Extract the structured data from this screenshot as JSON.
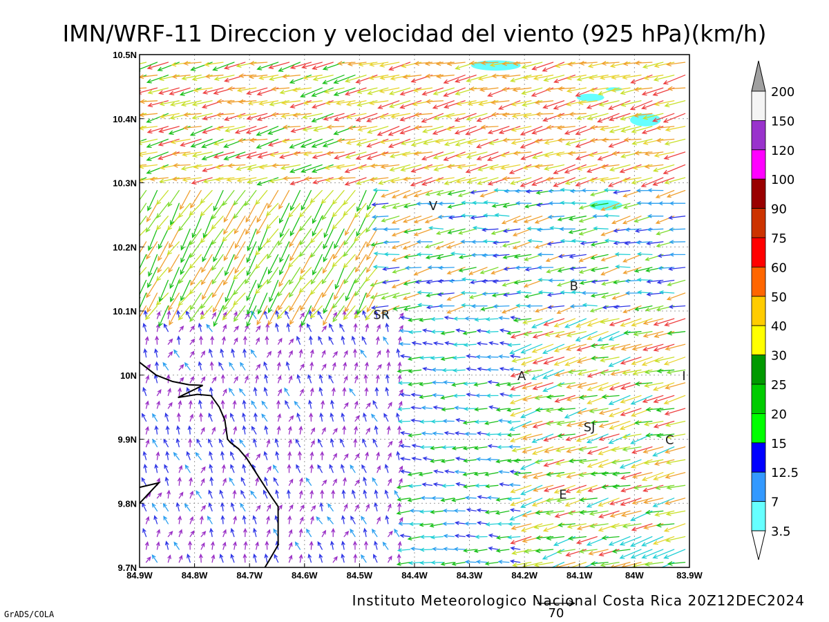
{
  "title": "IMN/WRF-11 Direccion y velocidad del viento (925 hPa)(km/h)",
  "credit": "Instituto Meteorologico Nacional Costa Rica  20Z12DEC2024",
  "software": "GrADS/COLA",
  "reference_vector": {
    "label": "70",
    "value": 70
  },
  "axes": {
    "lon_min": -84.9,
    "lon_max": -83.9,
    "lat_min": 9.7,
    "lat_max": 10.5,
    "x_ticks": [
      {
        "value": -84.9,
        "label": "84.9W"
      },
      {
        "value": -84.8,
        "label": "84.8W"
      },
      {
        "value": -84.7,
        "label": "84.7W"
      },
      {
        "value": -84.6,
        "label": "84.6W"
      },
      {
        "value": -84.5,
        "label": "84.5W"
      },
      {
        "value": -84.4,
        "label": "84.4W"
      },
      {
        "value": -84.3,
        "label": "84.3W"
      },
      {
        "value": -84.2,
        "label": "84.2W"
      },
      {
        "value": -84.1,
        "label": "84.1W"
      },
      {
        "value": -84.0,
        "label": "84W"
      },
      {
        "value": -83.9,
        "label": "83.9W"
      }
    ],
    "y_ticks": [
      {
        "value": 9.7,
        "label": "9.7N"
      },
      {
        "value": 9.8,
        "label": "9.8N"
      },
      {
        "value": 9.9,
        "label": "9.9N"
      },
      {
        "value": 10.0,
        "label": "10N"
      },
      {
        "value": 10.1,
        "label": "10.1N"
      },
      {
        "value": 10.2,
        "label": "10.2N"
      },
      {
        "value": 10.3,
        "label": "10.3N"
      },
      {
        "value": 10.4,
        "label": "10.4N"
      },
      {
        "value": 10.5,
        "label": "10.5N"
      }
    ],
    "grid": true
  },
  "places": [
    {
      "label": "V",
      "lon": -84.366,
      "lat": 10.265
    },
    {
      "label": "SR",
      "lon": -84.46,
      "lat": 10.095
    },
    {
      "label": "B",
      "lon": -84.11,
      "lat": 10.14
    },
    {
      "label": "A",
      "lon": -84.205,
      "lat": 10.0
    },
    {
      "label": "I",
      "lon": -83.91,
      "lat": 10.0
    },
    {
      "label": "SJ",
      "lon": -84.082,
      "lat": 9.92
    },
    {
      "label": "C",
      "lon": -83.936,
      "lat": 9.9
    },
    {
      "label": "E",
      "lon": -84.13,
      "lat": 9.815
    }
  ],
  "legend": {
    "entries": [
      {
        "label": "200",
        "color": "#a0a0a0"
      },
      {
        "label": "150",
        "color": "#f4f4f4"
      },
      {
        "label": "120",
        "color": "#9933cc"
      },
      {
        "label": "100",
        "color": "#ff00ff"
      },
      {
        "label": "90",
        "color": "#990000"
      },
      {
        "label": "75",
        "color": "#cc3300"
      },
      {
        "label": "60",
        "color": "#ff0000"
      },
      {
        "label": "50",
        "color": "#ff6600"
      },
      {
        "label": "40",
        "color": "#ffcc00"
      },
      {
        "label": "30",
        "color": "#ffff00"
      },
      {
        "label": "25",
        "color": "#009900"
      },
      {
        "label": "20",
        "color": "#00cc00"
      },
      {
        "label": "15",
        "color": "#00ff00"
      },
      {
        "label": "12.5",
        "color": "#0000ff"
      },
      {
        "label": "7",
        "color": "#3399ff"
      },
      {
        "label": "3.5",
        "color": "#66ffff"
      }
    ],
    "bottom_color": "#ffffff"
  },
  "colors": {
    "purple": "#9a2fc6",
    "blue": "#2e35e6",
    "lightblue": "#2a9ff0",
    "cyan": "#22cfd6",
    "green": "#19c019",
    "lightgreen": "#7edc30",
    "yellowgreen": "#c8e02a",
    "yellow": "#e8d430",
    "orange": "#f0a030",
    "red": "#ee4040",
    "coast": "#000000",
    "shade": "#66ffff"
  },
  "coastline": [
    [
      [
        -84.9,
        10.02
      ],
      [
        -84.87,
        10.0
      ],
      [
        -84.84,
        9.99
      ],
      [
        -84.81,
        9.985
      ],
      [
        -84.785,
        9.984
      ],
      [
        -84.83,
        9.965
      ],
      [
        -84.795,
        9.97
      ],
      [
        -84.77,
        9.968
      ],
      [
        -84.755,
        9.95
      ],
      [
        -84.745,
        9.93
      ],
      [
        -84.74,
        9.9
      ],
      [
        -84.735,
        9.895
      ],
      [
        -84.72,
        9.885
      ],
      [
        -84.705,
        9.87
      ],
      [
        -84.69,
        9.85
      ],
      [
        -84.675,
        9.83
      ],
      [
        -84.66,
        9.81
      ],
      [
        -84.648,
        9.795
      ],
      [
        -84.648,
        9.77
      ],
      [
        -84.648,
        9.735
      ],
      [
        -84.665,
        9.71
      ],
      [
        -84.672,
        9.7
      ]
    ],
    [
      [
        -84.9,
        9.825
      ],
      [
        -84.865,
        9.832
      ],
      [
        -84.9,
        9.8
      ]
    ]
  ],
  "shaded_regions": [
    {
      "lon": -84.252,
      "lat": 10.483,
      "rlon": 0.045,
      "rlat": 0.008
    },
    {
      "lon": -84.08,
      "lat": 10.433,
      "rlon": 0.025,
      "rlat": 0.006
    },
    {
      "lon": -84.037,
      "lat": 10.446,
      "rlon": 0.015,
      "rlat": 0.003
    },
    {
      "lon": -83.98,
      "lat": 10.398,
      "rlon": 0.028,
      "rlat": 0.01
    },
    {
      "lon": -84.052,
      "lat": 10.265,
      "rlon": 0.03,
      "rlat": 0.008
    }
  ],
  "chart_data": {
    "type": "vector_field",
    "variable": "Direccion y velocidad del viento (925 hPa)",
    "units": "km/h",
    "zones": [
      {
        "region": "north (10.3N-10.5N)",
        "direction": "from east-northeast",
        "speed_kmh": [
          30,
          65
        ]
      },
      {
        "region": "southwest coastal (south of 10.1N, west of 84.4W)",
        "direction": "variable, weak",
        "speed_kmh": [
          0,
          12
        ]
      },
      {
        "region": "central-east (9.9N-10.1N, 84.4W-84.2W)",
        "direction": "from east",
        "speed_kmh": [
          7,
          30
        ]
      },
      {
        "region": "east (east of 84.1W)",
        "direction": "from east-northeast",
        "speed_kmh": [
          20,
          60
        ]
      }
    ]
  }
}
